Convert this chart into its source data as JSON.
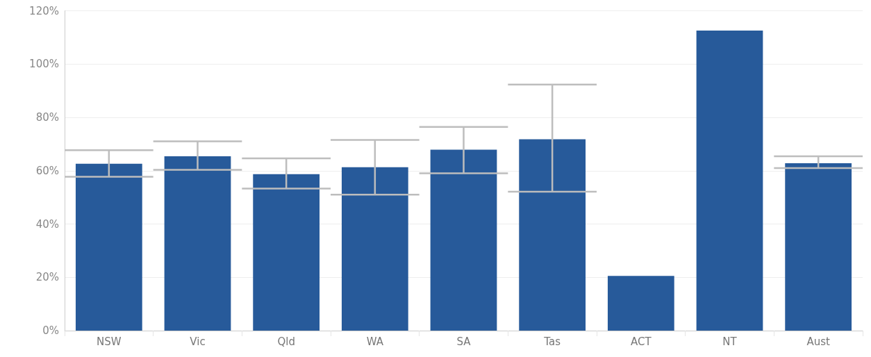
{
  "chart_data": {
    "type": "bar",
    "categories": [
      "NSW",
      "Vic",
      "Qld",
      "WA",
      "SA",
      "Tas",
      "ACT",
      "NT",
      "Aust"
    ],
    "series": [
      {
        "color": "#275a9a",
        "values": [
          62.6,
          65.4,
          58.7,
          61.3,
          67.9,
          71.8,
          20.5,
          112.6,
          62.8
        ],
        "errors": [
          [
            57.7,
            67.7
          ],
          [
            60.3,
            71.0
          ],
          [
            53.3,
            64.6
          ],
          [
            51.0,
            71.5
          ],
          [
            59.0,
            76.4
          ],
          [
            52.1,
            92.3
          ],
          null,
          null,
          [
            61.0,
            65.4
          ]
        ]
      }
    ],
    "ylim": [
      0,
      120
    ],
    "yticks": [
      {
        "value": 0,
        "label": "0%"
      },
      {
        "value": 20,
        "label": "20%"
      },
      {
        "value": 40,
        "label": "40%"
      },
      {
        "value": 60,
        "label": "60%"
      },
      {
        "value": 80,
        "label": "80%"
      },
      {
        "value": 100,
        "label": "100%"
      },
      {
        "value": 120,
        "label": "120%"
      }
    ],
    "grid": "y"
  }
}
